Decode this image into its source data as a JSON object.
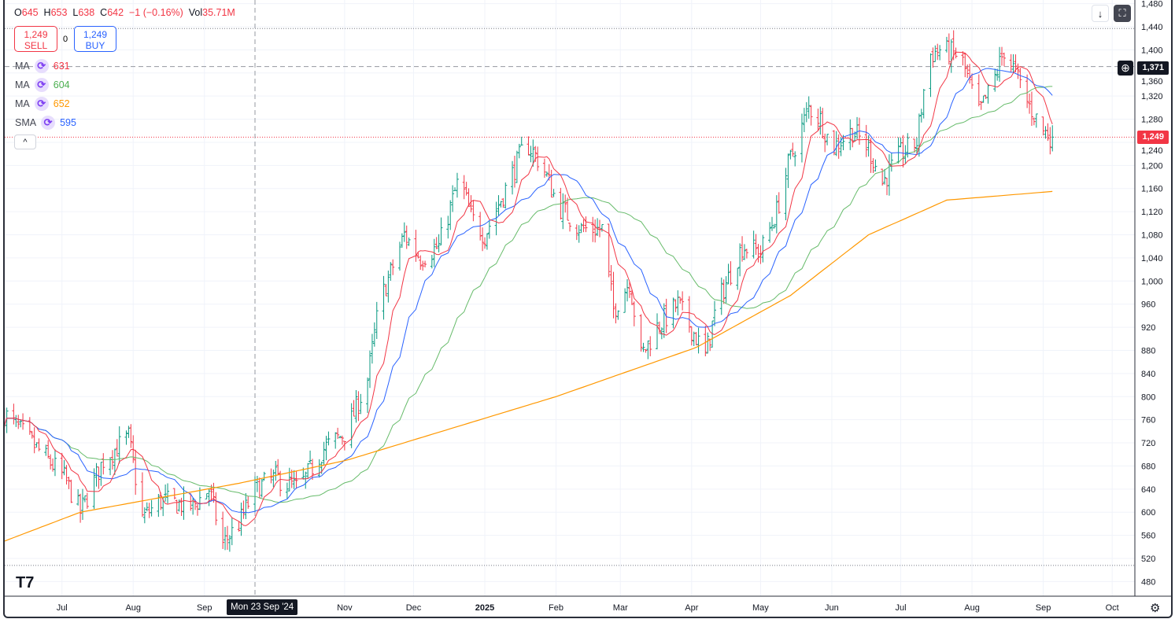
{
  "header": {
    "ohlc": [
      {
        "k": "O",
        "v": "645"
      },
      {
        "k": "H",
        "v": "653"
      },
      {
        "k": "L",
        "v": "638"
      },
      {
        "k": "C",
        "v": "642"
      }
    ],
    "change": "−1 (−0.16%)",
    "vol_label": "Vol",
    "vol": "35.71M"
  },
  "trade": {
    "sell_price": "1,249",
    "sell_label": "SELL",
    "spread": "0",
    "buy_price": "1,249",
    "buy_label": "BUY"
  },
  "indicators": [
    {
      "name": "MA",
      "value": "631",
      "color": "#f23645"
    },
    {
      "name": "MA",
      "value": "604",
      "color": "#4caf50"
    },
    {
      "name": "MA",
      "value": "652",
      "color": "#ff9800"
    },
    {
      "name": "SMA",
      "value": "595",
      "color": "#2962ff"
    }
  ],
  "icons": {
    "collapse": "^",
    "scroll": "↓",
    "fullscreen": "⛶",
    "plus": "⊕",
    "settings": "⚙"
  },
  "price_labels": {
    "crosshair": "1,371",
    "last": "1,249"
  },
  "crosshair_date": "Mon 23 Sep '24",
  "colors": {
    "up": "#089981",
    "down": "#f23645",
    "last": "#f23645"
  },
  "chart_data": {
    "type": "ohlc",
    "y_ticks": [
      480,
      520,
      560,
      600,
      640,
      680,
      720,
      760,
      800,
      840,
      880,
      920,
      960,
      1000,
      1040,
      1080,
      1120,
      1160,
      1200,
      1240,
      1280,
      1320,
      1360,
      1400,
      1440,
      1480
    ],
    "x_ticks": [
      {
        "d": "2024-07-01",
        "t": "Jul"
      },
      {
        "d": "2024-08-01",
        "t": "Aug"
      },
      {
        "d": "2024-09-01",
        "t": "Sep"
      },
      {
        "d": "2024-11-01",
        "t": "Nov"
      },
      {
        "d": "2024-12-01",
        "t": "Dec"
      },
      {
        "d": "2025-01-01",
        "t": "2025"
      },
      {
        "d": "2025-02-01",
        "t": "Feb"
      },
      {
        "d": "2025-03-01",
        "t": "Mar"
      },
      {
        "d": "2025-04-01",
        "t": "Apr"
      },
      {
        "d": "2025-05-01",
        "t": "May"
      },
      {
        "d": "2025-06-01",
        "t": "Jun"
      },
      {
        "d": "2025-07-01",
        "t": "Jul"
      },
      {
        "d": "2025-08-01",
        "t": "Aug"
      },
      {
        "d": "2025-09-01",
        "t": "Sep"
      },
      {
        "d": "2025-10-01",
        "t": "Oct"
      }
    ],
    "closes": [
      [
        "2024-06-06",
        770
      ],
      [
        "2024-07-02",
        660
      ],
      [
        "2024-07-09",
        600
      ],
      [
        "2024-07-19",
        690
      ],
      [
        "2024-07-30",
        730
      ],
      [
        "2024-08-05",
        590
      ],
      [
        "2024-08-13",
        620
      ],
      [
        "2024-08-27",
        610
      ],
      [
        "2024-09-03",
        640
      ],
      [
        "2024-09-09",
        545
      ],
      [
        "2024-09-16",
        580
      ],
      [
        "2024-09-23",
        640
      ],
      [
        "2024-10-02",
        660
      ],
      [
        "2024-10-12",
        640
      ],
      [
        "2024-10-23",
        710
      ],
      [
        "2024-11-02",
        740
      ],
      [
        "2024-11-11",
        830
      ],
      [
        "2024-11-16",
        960
      ],
      [
        "2024-11-27",
        1080
      ],
      [
        "2024-12-04",
        1040
      ],
      [
        "2024-12-12",
        1060
      ],
      [
        "2024-12-21",
        1180
      ],
      [
        "2024-12-26",
        1110
      ],
      [
        "2025-01-01",
        1080
      ],
      [
        "2025-01-09",
        1150
      ],
      [
        "2025-01-19",
        1240
      ],
      [
        "2025-01-26",
        1200
      ],
      [
        "2025-02-02",
        1130
      ],
      [
        "2025-02-12",
        1090
      ],
      [
        "2025-02-21",
        1090
      ],
      [
        "2025-02-26",
        950
      ],
      [
        "2025-03-05",
        1000
      ],
      [
        "2025-03-10",
        870
      ],
      [
        "2025-03-17",
        920
      ],
      [
        "2025-03-26",
        960
      ],
      [
        "2025-04-02",
        910
      ],
      [
        "2025-04-07",
        870
      ],
      [
        "2025-04-12",
        960
      ],
      [
        "2025-04-23",
        1060
      ],
      [
        "2025-05-01",
        1050
      ],
      [
        "2025-05-08",
        1120
      ],
      [
        "2025-05-13",
        1200
      ],
      [
        "2025-05-22",
        1300
      ],
      [
        "2025-05-27",
        1280
      ],
      [
        "2025-06-01",
        1230
      ],
      [
        "2025-06-10",
        1260
      ],
      [
        "2025-06-17",
        1230
      ],
      [
        "2025-06-23",
        1170
      ],
      [
        "2025-07-01",
        1220
      ],
      [
        "2025-07-08",
        1240
      ],
      [
        "2025-07-13",
        1390
      ],
      [
        "2025-07-18",
        1400
      ],
      [
        "2025-07-27",
        1390
      ],
      [
        "2025-08-04",
        1290
      ],
      [
        "2025-08-10",
        1340
      ],
      [
        "2025-08-15",
        1400
      ],
      [
        "2025-08-20",
        1360
      ],
      [
        "2025-08-25",
        1310
      ],
      [
        "2025-09-01",
        1260
      ],
      [
        "2025-09-05",
        1249
      ]
    ],
    "ma_periods": {
      "red": 10,
      "blue": 20,
      "green": 45
    },
    "ma_orange": [
      [
        "2024-06-06",
        550
      ],
      [
        "2024-07-09",
        600
      ],
      [
        "2024-09-16",
        650
      ],
      [
        "2024-11-02",
        690
      ],
      [
        "2025-02-01",
        800
      ],
      [
        "2025-04-03",
        885
      ],
      [
        "2025-05-14",
        975
      ],
      [
        "2025-06-17",
        1080
      ],
      [
        "2025-07-21",
        1140
      ],
      [
        "2025-09-05",
        1155
      ]
    ],
    "hlines": {
      "high": 1437,
      "low": 508,
      "crosshair": 1371,
      "last": 1249
    }
  }
}
